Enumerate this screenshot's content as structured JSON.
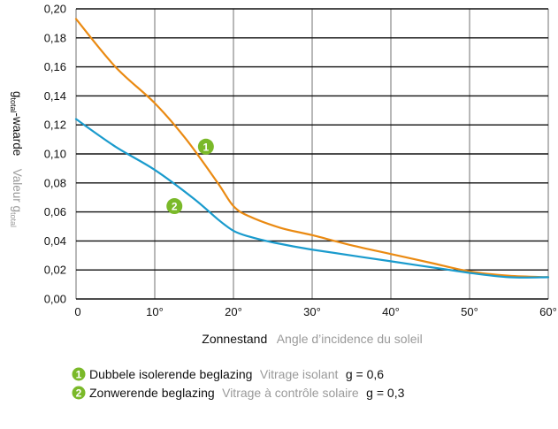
{
  "chart_data": {
    "type": "line",
    "ylabel_main": "g",
    "ylabel_main_sub": "total",
    "ylabel_main_rest": "-waarde",
    "ylabel_alt": "Valeur g",
    "ylabel_alt_sub": "total",
    "xlabel_main": "Zonnestand",
    "xlabel_alt": "Angle d’incidence du soleil",
    "xlim": [
      0,
      60
    ],
    "ylim": [
      0,
      0.2
    ],
    "x_ticks": [
      0,
      10,
      20,
      30,
      40,
      50,
      60
    ],
    "x_tick_labels": [
      "0",
      "10°",
      "20°",
      "30°",
      "40°",
      "50°",
      "60°"
    ],
    "y_ticks": [
      0,
      0.02,
      0.04,
      0.06,
      0.08,
      0.1,
      0.12,
      0.14,
      0.16,
      0.18,
      0.2
    ],
    "y_tick_labels": [
      "0,00",
      "0,02",
      "0,04",
      "0,06",
      "0,08",
      "0,10",
      "0,12",
      "0,14",
      "0,16",
      "0,18",
      "0,20"
    ],
    "grid": "horizontal",
    "badge_color": "#7ab929",
    "series": [
      {
        "name": "1",
        "color": "#ea8a12",
        "x": [
          0,
          5,
          10,
          14,
          18,
          20,
          22,
          26,
          30,
          35,
          40,
          45,
          50,
          55,
          60
        ],
        "y": [
          0.193,
          0.16,
          0.135,
          0.11,
          0.08,
          0.064,
          0.057,
          0.049,
          0.044,
          0.037,
          0.031,
          0.025,
          0.019,
          0.016,
          0.015
        ],
        "badge_at": [
          16.5,
          0.105
        ]
      },
      {
        "name": "2",
        "color": "#1a9bcd",
        "x": [
          0,
          5,
          10,
          15,
          18,
          20,
          22,
          25,
          30,
          40,
          50,
          55,
          60
        ],
        "y": [
          0.124,
          0.105,
          0.089,
          0.069,
          0.055,
          0.047,
          0.043,
          0.039,
          0.034,
          0.026,
          0.018,
          0.015,
          0.015
        ],
        "badge_at": [
          12.5,
          0.064
        ]
      }
    ],
    "legend": [
      {
        "badge": "1",
        "main": "Dubbele isolerende beglazing",
        "alt": "Vitrage isolant",
        "value": "g = 0,6"
      },
      {
        "badge": "2",
        "main": "Zonwerende beglazing",
        "alt": "Vitrage à contrôle solaire",
        "value": "g = 0,3"
      }
    ]
  }
}
